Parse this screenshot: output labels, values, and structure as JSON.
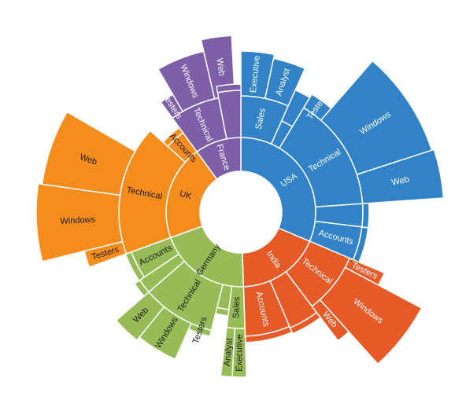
{
  "chart_data": {
    "type": "sunburst",
    "colors": {
      "USA": "#3182c6",
      "India": "#e65a28",
      "Germany": "#97bc57",
      "UK": "#f58c1e",
      "France": "#7c5fa6"
    },
    "dark_label_countries": [
      "UK",
      "Germany"
    ],
    "nodes": [
      {
        "label": "USA",
        "children": [
          {
            "label": "Sales",
            "children": [
              {
                "label": "Executive"
              },
              {
                "label": "Analyst"
              }
            ]
          },
          {
            "label": "",
            "children": [
              {
                "label": ""
              }
            ]
          },
          {
            "label": "Technical",
            "children": [
              {
                "label": "Testers"
              },
              {
                "label": "Windows"
              },
              {
                "label": "Web"
              }
            ]
          },
          {
            "label": "",
            "children": [
              {
                "label": ""
              }
            ]
          },
          {
            "label": "Accounts",
            "children": [
              {
                "label": ""
              }
            ]
          }
        ]
      },
      {
        "label": "India",
        "children": [
          {
            "label": "Technical",
            "children": [
              {
                "label": "Testers"
              },
              {
                "label": "Windows"
              },
              {
                "label": "Web"
              }
            ]
          },
          {
            "label": "",
            "children": [
              {
                "label": ""
              }
            ]
          },
          {
            "label": "Accounts",
            "children": [
              {
                "label": ""
              }
            ]
          }
        ]
      },
      {
        "label": "Germany",
        "children": [
          {
            "label": "Sales",
            "children": [
              {
                "label": "Executive"
              },
              {
                "label": "Analyst"
              }
            ]
          },
          {
            "label": "",
            "children": [
              {
                "label": ""
              }
            ]
          },
          {
            "label": "Technical",
            "children": [
              {
                "label": "Testers"
              },
              {
                "label": "Windows"
              },
              {
                "label": "Web"
              }
            ]
          },
          {
            "label": "",
            "children": [
              {
                "label": ""
              }
            ]
          },
          {
            "label": "Accounts",
            "children": [
              {
                "label": ""
              }
            ]
          }
        ]
      },
      {
        "label": "UK",
        "children": [
          {
            "label": "Technical",
            "children": [
              {
                "label": "Testers"
              },
              {
                "label": "Windows"
              },
              {
                "label": "Web"
              }
            ]
          },
          {
            "label": "Accounts",
            "children": [
              {
                "label": ""
              }
            ]
          }
        ]
      },
      {
        "label": "France",
        "children": [
          {
            "label": "Technical",
            "children": [
              {
                "label": "Testers"
              },
              {
                "label": "Windows"
              },
              {
                "label": "Web"
              }
            ]
          },
          {
            "label": "",
            "children": [
              {
                "label": ""
              }
            ]
          }
        ]
      }
    ]
  }
}
